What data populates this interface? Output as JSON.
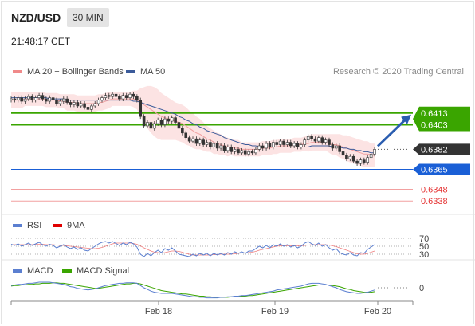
{
  "header": {
    "pair": "NZD/USD",
    "timeframe": "30 MIN",
    "time": "21:48:17 CET"
  },
  "legend_main": [
    {
      "name": "MA 20 + Bollinger Bands",
      "color": "#f08a8a"
    },
    {
      "name": "MA 50",
      "color": "#3b5b9a"
    }
  ],
  "credit": "Research © 2020 Trading Central",
  "legend_rsi": [
    {
      "name": "RSI",
      "color": "#5b7fd0"
    },
    {
      "name": "9MA",
      "color": "#e00000"
    }
  ],
  "legend_macd": [
    {
      "name": "MACD",
      "color": "#5b7fd0"
    },
    {
      "name": "MACD Signal",
      "color": "#3aa500"
    }
  ],
  "chart_data": {
    "type": "candlestick",
    "x_labels": [
      "Feb 18",
      "Feb 19",
      "Feb 20"
    ],
    "ylim": [
      0.633,
      0.644
    ],
    "levels": [
      {
        "value": 0.6413,
        "label": "0.6413",
        "kind": "resistance",
        "color": "#3aa500"
      },
      {
        "value": 0.6403,
        "label": "0.6403",
        "kind": "resistance",
        "color": "#3aa500"
      },
      {
        "value": 0.6382,
        "label": "0.6382",
        "kind": "last",
        "color": "#333333"
      },
      {
        "value": 0.6365,
        "label": "0.6365",
        "kind": "pivot",
        "color": "#1a5fd6"
      },
      {
        "value": 0.6348,
        "label": "0.6348",
        "kind": "support",
        "color": "#e53333"
      },
      {
        "value": 0.6338,
        "label": "0.6338",
        "kind": "support",
        "color": "#e53333"
      }
    ],
    "closes": [
      0.6425,
      0.6424,
      0.6426,
      0.6423,
      0.6425,
      0.6427,
      0.6424,
      0.6426,
      0.6428,
      0.6425,
      0.6423,
      0.6426,
      0.6424,
      0.6421,
      0.6423,
      0.6425,
      0.6422,
      0.642,
      0.6422,
      0.6419,
      0.6421,
      0.6418,
      0.6416,
      0.6419,
      0.6421,
      0.6424,
      0.6426,
      0.6428,
      0.6427,
      0.6429,
      0.6427,
      0.6425,
      0.6428,
      0.6426,
      0.6429,
      0.6427,
      0.6424,
      0.641,
      0.6402,
      0.6405,
      0.64,
      0.6404,
      0.6407,
      0.6403,
      0.6408,
      0.6406,
      0.6409,
      0.6405,
      0.64,
      0.6396,
      0.6392,
      0.6389,
      0.6391,
      0.6387,
      0.639,
      0.6386,
      0.6388,
      0.6384,
      0.6387,
      0.6383,
      0.6385,
      0.6381,
      0.6384,
      0.638,
      0.6382,
      0.6379,
      0.6381,
      0.6378,
      0.638,
      0.6379,
      0.6382,
      0.6385,
      0.6383,
      0.6387,
      0.6384,
      0.6388,
      0.6386,
      0.6389,
      0.6386,
      0.6388,
      0.6385,
      0.6387,
      0.6384,
      0.6386,
      0.639,
      0.6393,
      0.6391,
      0.6389,
      0.6392,
      0.6388,
      0.639,
      0.6386,
      0.6383,
      0.6385,
      0.638,
      0.6377,
      0.6374,
      0.6376,
      0.6372,
      0.637,
      0.6373,
      0.6371,
      0.6375,
      0.6378,
      0.6382
    ],
    "ma20": [
      0.6424,
      0.6424,
      0.6424,
      0.6424,
      0.6425,
      0.6425,
      0.6425,
      0.6425,
      0.6425,
      0.6425,
      0.6424,
      0.6424,
      0.6424,
      0.6424,
      0.6423,
      0.6423,
      0.6422,
      0.6422,
      0.6422,
      0.6421,
      0.6421,
      0.6421,
      0.6421,
      0.6421,
      0.6421,
      0.6422,
      0.6422,
      0.6423,
      0.6424,
      0.6425,
      0.6425,
      0.6425,
      0.6425,
      0.6425,
      0.6425,
      0.6425,
      0.6424,
      0.6422,
      0.642,
      0.6418,
      0.6416,
      0.6414,
      0.6412,
      0.641,
      0.6409,
      0.6408,
      0.6407,
      0.6406,
      0.6405,
      0.6404,
      0.6402,
      0.64,
      0.6398,
      0.6396,
      0.6395,
      0.6393,
      0.6391,
      0.639,
      0.6388,
      0.6387,
      0.6386,
      0.6385,
      0.6384,
      0.6384,
      0.6383,
      0.6383,
      0.6382,
      0.6382,
      0.6382,
      0.6382,
      0.6382,
      0.6382,
      0.6383,
      0.6383,
      0.6383,
      0.6384,
      0.6384,
      0.6385,
      0.6385,
      0.6385,
      0.6385,
      0.6386,
      0.6386,
      0.6386,
      0.6387,
      0.6387,
      0.6388,
      0.6388,
      0.6388,
      0.6388,
      0.6388,
      0.6387,
      0.6386,
      0.6386,
      0.6385,
      0.6384,
      0.6383,
      0.6382,
      0.6381,
      0.638,
      0.6379,
      0.6378,
      0.6378,
      0.6377,
      0.6377
    ],
    "ma50": [
      0.6426,
      0.6426,
      0.6426,
      0.6426,
      0.6426,
      0.6426,
      0.6426,
      0.6426,
      0.6426,
      0.6426,
      0.6426,
      0.6425,
      0.6425,
      0.6425,
      0.6425,
      0.6425,
      0.6424,
      0.6424,
      0.6424,
      0.6424,
      0.6424,
      0.6424,
      0.6424,
      0.6424,
      0.6424,
      0.6424,
      0.6424,
      0.6424,
      0.6424,
      0.6424,
      0.6424,
      0.6424,
      0.6424,
      0.6424,
      0.6424,
      0.6423,
      0.6423,
      0.6422,
      0.6421,
      0.642,
      0.6419,
      0.6418,
      0.6417,
      0.6416,
      0.6415,
      0.6414,
      0.6413,
      0.6412,
      0.641,
      0.6409,
      0.6407,
      0.6406,
      0.6404,
      0.6403,
      0.6401,
      0.64,
      0.6398,
      0.6397,
      0.6396,
      0.6395,
      0.6394,
      0.6392,
      0.6391,
      0.639,
      0.6389,
      0.6388,
      0.6387,
      0.6386,
      0.6386,
      0.6385,
      0.6385,
      0.6384,
      0.6384,
      0.6384,
      0.6384,
      0.6384,
      0.6384,
      0.6384,
      0.6384,
      0.6384,
      0.6384,
      0.6384,
      0.6384,
      0.6384,
      0.6384,
      0.6384,
      0.6385,
      0.6385,
      0.6385,
      0.6385,
      0.6385,
      0.6385,
      0.6384,
      0.6384,
      0.6384,
      0.6383,
      0.6383,
      0.6382,
      0.6382,
      0.6381,
      0.6381,
      0.638,
      0.638,
      0.6379,
      0.6379
    ],
    "bb_width": [
      0.0007,
      0.0007,
      0.0007,
      0.0007,
      0.0006,
      0.0006,
      0.0006,
      0.0006,
      0.0006,
      0.0006,
      0.0006,
      0.0006,
      0.0006,
      0.0006,
      0.0006,
      0.0006,
      0.0007,
      0.0007,
      0.0007,
      0.0007,
      0.0007,
      0.0007,
      0.0007,
      0.0007,
      0.0007,
      0.0007,
      0.0007,
      0.0007,
      0.0007,
      0.0006,
      0.0006,
      0.0006,
      0.0006,
      0.0006,
      0.0006,
      0.0007,
      0.0008,
      0.0012,
      0.0015,
      0.0018,
      0.002,
      0.0021,
      0.0021,
      0.002,
      0.0019,
      0.0018,
      0.0017,
      0.0016,
      0.0016,
      0.0016,
      0.0016,
      0.0015,
      0.0015,
      0.0014,
      0.0013,
      0.0012,
      0.0011,
      0.001,
      0.001,
      0.0009,
      0.0009,
      0.0008,
      0.0008,
      0.0007,
      0.0007,
      0.0007,
      0.0006,
      0.0006,
      0.0006,
      0.0006,
      0.0006,
      0.0006,
      0.0006,
      0.0006,
      0.0006,
      0.0006,
      0.0006,
      0.0006,
      0.0006,
      0.0006,
      0.0006,
      0.0006,
      0.0006,
      0.0006,
      0.0006,
      0.0007,
      0.0007,
      0.0007,
      0.0007,
      0.0007,
      0.0007,
      0.0008,
      0.0009,
      0.0009,
      0.001,
      0.001,
      0.0011,
      0.0011,
      0.0011,
      0.0011,
      0.0011,
      0.0011,
      0.0011,
      0.001,
      0.001
    ],
    "rsi": {
      "levels": [
        70,
        50,
        30
      ],
      "rsi": [
        55,
        52,
        56,
        50,
        54,
        58,
        52,
        56,
        60,
        54,
        50,
        55,
        52,
        46,
        50,
        54,
        48,
        44,
        48,
        42,
        46,
        40,
        38,
        44,
        50,
        56,
        60,
        62,
        58,
        62,
        57,
        52,
        58,
        54,
        60,
        56,
        48,
        30,
        24,
        32,
        26,
        34,
        40,
        34,
        44,
        40,
        46,
        38,
        30,
        28,
        26,
        24,
        30,
        26,
        32,
        28,
        32,
        26,
        32,
        28,
        32,
        28,
        34,
        30,
        36,
        32,
        36,
        32,
        38,
        38,
        44,
        50,
        46,
        52,
        46,
        54,
        50,
        56,
        50,
        54,
        48,
        52,
        46,
        50,
        58,
        62,
        56,
        52,
        58,
        50,
        54,
        46,
        40,
        44,
        34,
        30,
        28,
        34,
        28,
        26,
        34,
        32,
        42,
        48,
        54
      ],
      "ma9": [
        54,
        54,
        54,
        54,
        54,
        54,
        54,
        55,
        55,
        55,
        54,
        54,
        54,
        53,
        52,
        52,
        51,
        50,
        49,
        48,
        47,
        46,
        45,
        44,
        44,
        45,
        47,
        50,
        53,
        56,
        58,
        58,
        58,
        58,
        58,
        57,
        55,
        51,
        46,
        42,
        38,
        35,
        34,
        33,
        34,
        36,
        38,
        38,
        37,
        35,
        32,
        30,
        28,
        28,
        28,
        28,
        28,
        28,
        29,
        29,
        30,
        30,
        30,
        30,
        31,
        32,
        33,
        33,
        34,
        35,
        37,
        40,
        42,
        44,
        46,
        48,
        50,
        51,
        51,
        51,
        51,
        51,
        51,
        51,
        52,
        53,
        54,
        54,
        54,
        54,
        54,
        53,
        51,
        49,
        46,
        43,
        40,
        37,
        34,
        31,
        30,
        30,
        32,
        35,
        38
      ]
    },
    "macd": {
      "zero_label": "0",
      "macd": [
        0.4,
        0.5,
        0.6,
        0.6,
        0.7,
        0.8,
        0.8,
        0.9,
        1.0,
        1.0,
        1.0,
        1.0,
        0.9,
        0.8,
        0.7,
        0.6,
        0.4,
        0.2,
        0.1,
        -0.1,
        -0.2,
        -0.3,
        -0.4,
        -0.3,
        -0.2,
        0.0,
        0.2,
        0.4,
        0.5,
        0.6,
        0.7,
        0.8,
        0.8,
        0.9,
        0.9,
        0.9,
        0.8,
        0.4,
        0.0,
        -0.3,
        -0.6,
        -0.8,
        -0.9,
        -1.0,
        -1.0,
        -1.0,
        -1.0,
        -1.1,
        -1.2,
        -1.3,
        -1.4,
        -1.5,
        -1.6,
        -1.6,
        -1.7,
        -1.7,
        -1.8,
        -1.8,
        -1.8,
        -1.8,
        -1.7,
        -1.7,
        -1.6,
        -1.6,
        -1.5,
        -1.5,
        -1.4,
        -1.4,
        -1.3,
        -1.2,
        -1.1,
        -1.0,
        -0.9,
        -0.8,
        -0.7,
        -0.6,
        -0.4,
        -0.3,
        -0.2,
        -0.1,
        0.0,
        0.1,
        0.2,
        0.3,
        0.5,
        0.7,
        0.8,
        0.8,
        0.8,
        0.7,
        0.6,
        0.4,
        0.2,
        0.0,
        -0.3,
        -0.5,
        -0.7,
        -0.8,
        -0.9,
        -1.0,
        -1.0,
        -0.9,
        -0.8,
        -0.6,
        -0.4
      ],
      "signal": [
        0.3,
        0.4,
        0.4,
        0.5,
        0.5,
        0.6,
        0.6,
        0.7,
        0.7,
        0.8,
        0.8,
        0.8,
        0.9,
        0.9,
        0.8,
        0.8,
        0.7,
        0.6,
        0.5,
        0.4,
        0.3,
        0.2,
        0.1,
        0.0,
        -0.1,
        -0.1,
        0.0,
        0.1,
        0.2,
        0.3,
        0.4,
        0.5,
        0.6,
        0.7,
        0.7,
        0.8,
        0.8,
        0.7,
        0.5,
        0.3,
        0.1,
        -0.1,
        -0.3,
        -0.5,
        -0.6,
        -0.7,
        -0.8,
        -0.9,
        -1.0,
        -1.1,
        -1.1,
        -1.2,
        -1.3,
        -1.4,
        -1.5,
        -1.5,
        -1.6,
        -1.6,
        -1.7,
        -1.7,
        -1.7,
        -1.7,
        -1.7,
        -1.6,
        -1.6,
        -1.6,
        -1.5,
        -1.5,
        -1.4,
        -1.4,
        -1.3,
        -1.2,
        -1.1,
        -1.0,
        -0.9,
        -0.8,
        -0.7,
        -0.6,
        -0.5,
        -0.4,
        -0.3,
        -0.2,
        -0.1,
        0.0,
        0.1,
        0.2,
        0.3,
        0.4,
        0.5,
        0.5,
        0.5,
        0.5,
        0.4,
        0.3,
        0.2,
        0.0,
        -0.2,
        -0.3,
        -0.5,
        -0.6,
        -0.7,
        -0.8,
        -0.8,
        -0.8,
        -0.7
      ]
    }
  }
}
